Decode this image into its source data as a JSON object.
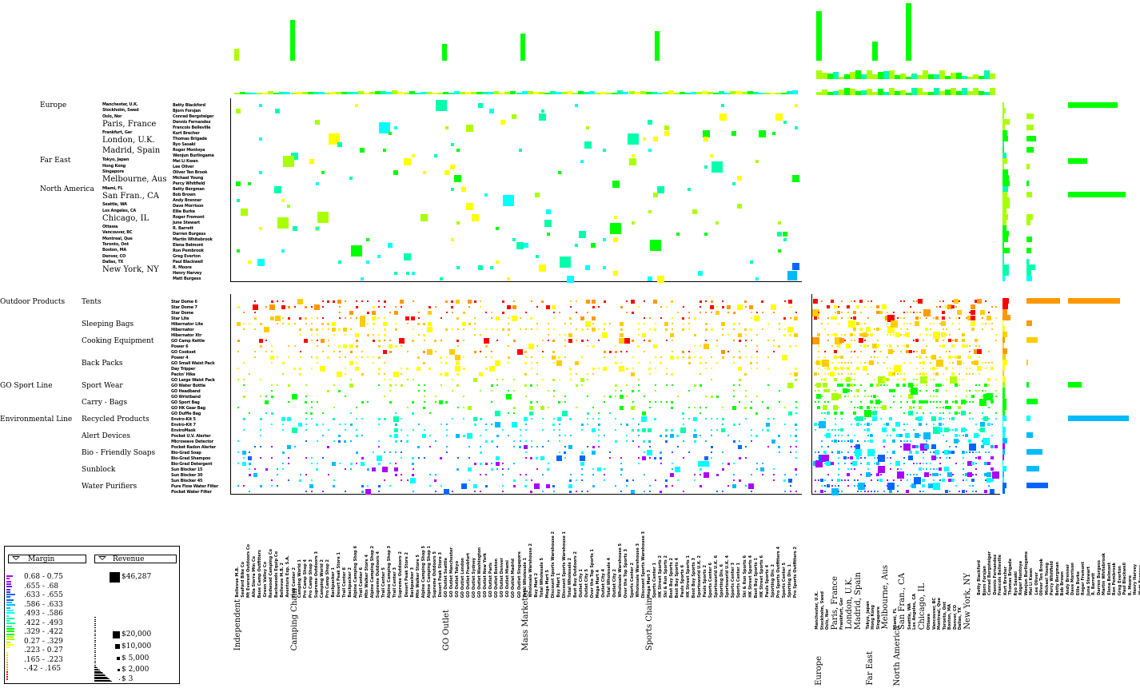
{
  "chart_data": {
    "type": "scatter",
    "title": "",
    "encoding": {
      "color": "Margin",
      "size": "Revenue"
    },
    "upper_rows": {
      "regions": [
        {
          "name": "Europe",
          "cities": [
            "Manchester, U.K.",
            "Stockholm, Swed",
            "Oslo, Nor",
            "Paris, France",
            "Frankfurt, Ger",
            "London, U.K.",
            "Madrid, Spain"
          ]
        },
        {
          "name": "Far East",
          "cities": [
            "Tokyo, Japan",
            "Hong Kong",
            "Singapore",
            "Melbourne, Aus"
          ]
        },
        {
          "name": "North America",
          "cities": [
            "Miami, FL",
            "San Fran., CA",
            "Seattle, WA",
            "Los Angeles, CA",
            "Chicago, IL",
            "Ottawa",
            "Vancouver, BC",
            "Montreal, Que",
            "Toronto, Ont",
            "Boston, MA",
            "Denver, CO",
            "Dallas, TX",
            "New York, NY"
          ]
        }
      ],
      "big_cities": [
        "Paris, France",
        "London, U.K.",
        "Madrid, Spain",
        "Melbourne, Aus",
        "San Fran., CA",
        "Chicago, IL",
        "New York, NY"
      ],
      "salespeople": [
        "Betty Blackford",
        "Bjorn Forsjan",
        "Conrad Bergsteiger",
        "Dennis Fernandez",
        "Francois Belleville",
        "Kurt Brecher",
        "Thomas Brigade",
        "Ryo Sasaki",
        "Roger Montoya",
        "Wenjun Burlingame",
        "Mei Li Kwan",
        "Lee Oliver",
        "Oliver Ten Brook",
        "Michael Young",
        "Percy Whitfield",
        "Betty Bergman",
        "Bob Brown",
        "Andy Brenner",
        "Dave Morrison",
        "Ellie Burke",
        "Roger Fremont",
        "June Stewart",
        "R. Barrett",
        "Darren Burgess",
        "Martin Whitebrook",
        "Elena Belmont",
        "Ron Pembrook",
        "Greg Everton",
        "Paul Blackwell",
        "R. Moore",
        "Henry Harvey",
        "Matt Burgess"
      ]
    },
    "lower_rows": {
      "product_lines": [
        {
          "name": "Outdoor Products",
          "types": [
            {
              "name": "Tents",
              "products": [
                "Star Dome 6",
                "Star Dome 7",
                "Star Dome",
                "Star Lite"
              ]
            },
            {
              "name": "Sleeping Bags",
              "products": [
                "Hibernator Lite",
                "Hibernator",
                "Hibernator Xtr"
              ]
            },
            {
              "name": "Cooking Equipment",
              "products": [
                "GO Camp Kettle",
                "Power 6",
                "GO Cookset",
                "Power 4"
              ]
            },
            {
              "name": "Back Packs",
              "products": [
                "GO Small Waist Pack",
                "Day Tripper",
                "Packn' Hike",
                "GO Large Waist Pack"
              ]
            }
          ]
        },
        {
          "name": "GO Sport Line",
          "types": [
            {
              "name": "Sport Wear",
              "products": [
                "GO Water Bottle",
                "GO Headband",
                "GO Wristband"
              ]
            },
            {
              "name": "Carry - Bags",
              "products": [
                "GO Sport Bag",
                "GO HK Gear Bag",
                "GO Duffle Bag"
              ]
            }
          ]
        },
        {
          "name": "Environmental Line",
          "types": [
            {
              "name": "Recycled Products",
              "products": [
                "Enviro-Kit 5",
                "Enviro-Kit 7",
                "EnviroMask"
              ]
            },
            {
              "name": "Alert Devices",
              "products": [
                "Pocket U.V. Alerter",
                "Microwave Detector",
                "Pocket Radon Alerter"
              ]
            },
            {
              "name": "Bio - Friendly Soaps",
              "products": [
                "Bio-Grad Soap",
                "Bio-Grad Shampoo",
                "Bio-Grad Detergent"
              ]
            },
            {
              "name": "Sunblock",
              "products": [
                "Sun Blocker 15",
                "Sun Blocker 30",
                "Sun Blocker 45"
              ]
            },
            {
              "name": "Water Purifiers",
              "products": [
                "Pure Flow Water Filter",
                "Pocket Water Filter"
              ]
            }
          ]
        }
      ]
    },
    "columns": {
      "channels": [
        {
          "name": "Independent",
          "retailers": [
            "Bellevue M.B.",
            "Seaford Bike Co",
            "Mt Everest Outdoors Co",
            "Alta Sierra Mtn Co",
            "Base Camp Outfitters",
            "Green Valley Co",
            "Redwood Camping Co",
            "Backwoods Equip Co",
            "Bellevue M.B. 2",
            "Aventura Exp. S.A."
          ]
        },
        {
          "name": "Camping Chain",
          "retailers": [
            "Trail Center 2",
            "Camping World 1",
            "Pro Camp Shop 4",
            "Pro Camp Shop 3",
            "Supreme Outdoors 3",
            "Camping World 2",
            "Pro Camp Shop 2",
            "Backpacker 1",
            "Desert Peak Store 1",
            "Trail Center 8",
            "Backpacker 2",
            "Alpine Camping Shop 6",
            "Trail Center 6",
            "Mtn Walker Store 4",
            "Alpine Camping Shop 2",
            "Supreme Outdoors 4",
            "Trail Center 5",
            "Alpine Camping Shop 3",
            "Trail Center 3",
            "Supreme Outdoors 2",
            "Desert Peak Store 2",
            "Backpacker 3",
            "Mtn Walker Store 5",
            "Alpine Camping Shop 5",
            "Alpine Camping Shop 1",
            "Supreme Outdoors 5",
            "Desert Peak Store 3"
          ]
        },
        {
          "name": "GO Outlet",
          "retailers": [
            "GO Outlet Seattle",
            "GO Outlet Manchester",
            "GO Outlet Tokyo",
            "GO Outlet London",
            "GO Outlet Frankfurt",
            "GO Outlet Sydney",
            "GO Outlet Washington",
            "GO Outlet New York",
            "GO Outlet Paris",
            "GO Outlet Boston",
            "GO Outlet Denver",
            "GO Outlet Miami",
            "GO Outlet Madrid",
            "GO Outlet Singapore"
          ]
        },
        {
          "name": "Mass Marketer",
          "retailers": [
            "Total Wholesale 1",
            "Wholesale Warehouse 2",
            "Buy Mart 2",
            "Total Wholesale 5",
            "Mega Mart 5",
            "Discount Sports Warehouse 2",
            "Buy Mart 1",
            "Discount Sports Warehouse 1",
            "Total Wholesale 2",
            "Best Buy Outdoors 2",
            "Outlet City 1",
            "Outlet City 5",
            "Over the Top Sports 1",
            "Mega Mart 4",
            "Outlet City 4",
            "Total Wholesale 4",
            "Outlet City 2",
            "Wholesale Warehouse 5",
            "Over the Top Sports 3",
            "Sports Center 2",
            "Wholesale Warehouse 3",
            "Discount Sports Warehouse 3"
          ]
        },
        {
          "name": "Sports Chain",
          "retailers": [
            "Mega Mart 3",
            "Sports Center 1",
            "HK Street Sports 2",
            "Ski & Run Sports 2",
            "Best Buy Sports 2",
            "Best Buy Sports 4",
            "Pauls Sports 6",
            "HK Street Sports 1",
            "Best Buy Sports 3",
            "Sportsworld U.K. 2",
            "Pauls Sports 2",
            "Sports Center 6",
            "Sportsworld U.K. 6",
            "Sporting Div. 6",
            "Sportsworld U.K. 4",
            "Sports Center 3",
            "Sports Center 1",
            "Ski & Run Sports 6",
            "HK Street Sports 4",
            "Best Buy Sports 1",
            "HK Street Sports 6",
            "Pauls Sports 4",
            "Sporting Div. 2",
            "Pro Sports Outfitters 4",
            "Sports Center 5",
            "Sporting Div. 1",
            "Pro Sports Outfitters 2"
          ]
        }
      ]
    },
    "margin_legend": {
      "title": "Margin",
      "ranges": [
        "0.68 - 0.75",
        ".655 - .68",
        ".633 - .655",
        ".586 - .633",
        ".493 - .586",
        ".422 - .493",
        ".329 - .422",
        "0.27 - .329",
        ".223 - 0.27",
        ".165 - .223",
        "-.42 - .165"
      ],
      "colors": [
        "#aa00ff",
        "#5522ff",
        "#0066ff",
        "#00bbff",
        "#00ffff",
        "#00ffaa",
        "#00ff00",
        "#aaff00",
        "#ffff00",
        "#ffcc00",
        "#ff9900",
        "#ff0000"
      ]
    },
    "revenue_legend": {
      "title": "Revenue",
      "values": [
        "$46,287",
        "$20,000",
        "$10,000",
        "$ 5,000",
        "$ 2,000",
        "$ 3"
      ]
    },
    "marginals": {
      "upper_region_totals": [
        {
          "value": 62,
          "color": "#00ff00"
        },
        {
          "value": 24,
          "color": "#00ff00"
        },
        {
          "value": 72,
          "color": "#00ff00"
        }
      ],
      "lower_line_totals": [
        {
          "value": 65,
          "color": "#ff9900"
        },
        {
          "value": 17,
          "color": "#00ff00"
        },
        {
          "value": 76,
          "color": "#00bbff"
        }
      ],
      "lower_type_totals": [
        {
          "value": 42,
          "color": "#ff9900"
        },
        {
          "value": 7,
          "color": "#ff9900"
        },
        {
          "value": 14,
          "color": "#ffcc00"
        },
        {
          "value": 2,
          "color": "#ffcc00"
        },
        {
          "value": 3,
          "color": "#00ff00"
        },
        {
          "value": 14,
          "color": "#00ff00"
        },
        {
          "value": 5,
          "color": "#00ffff"
        },
        {
          "value": 8,
          "color": "#00bbff"
        },
        {
          "value": 20,
          "color": "#00bbff"
        },
        {
          "value": 16,
          "color": "#00bbff"
        },
        {
          "value": 27,
          "color": "#0066ff"
        }
      ],
      "top_channel_totals": [
        {
          "value": 15,
          "color": "#aaff00"
        },
        {
          "value": 51,
          "color": "#00ff00"
        },
        {
          "value": 21,
          "color": "#00ff00"
        },
        {
          "value": 34,
          "color": "#00ff00"
        },
        {
          "value": 37,
          "color": "#00ff00"
        }
      ],
      "top_region_totals": [
        {
          "value": 62,
          "color": "#00ff00"
        },
        {
          "value": 24,
          "color": "#00ff00"
        },
        {
          "value": 72,
          "color": "#00ff00"
        }
      ]
    }
  }
}
